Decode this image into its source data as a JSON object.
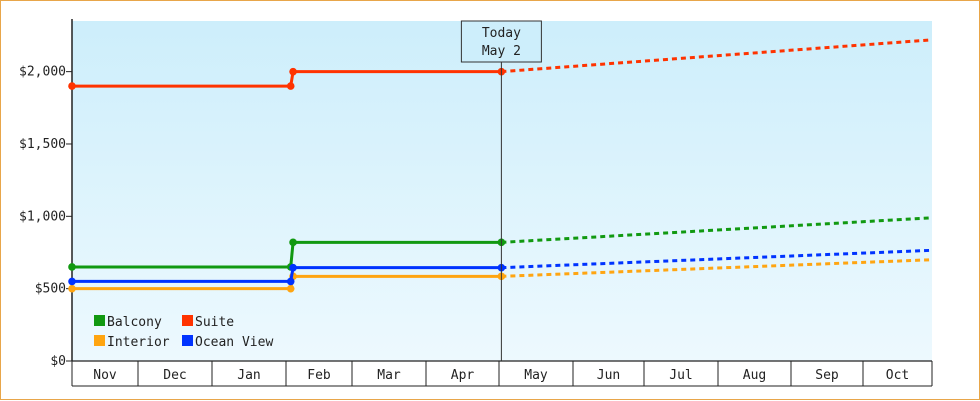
{
  "chart_data": {
    "type": "line",
    "title": "",
    "xlabel": "",
    "ylabel": "",
    "categories": [
      "Nov",
      "Dec",
      "Jan",
      "Feb",
      "Mar",
      "Apr",
      "May",
      "Jun",
      "Jul",
      "Aug",
      "Sep",
      "Oct"
    ],
    "ylim": [
      0,
      2350
    ],
    "yticks": [
      0,
      500,
      1000,
      1500,
      2000
    ],
    "ytick_labels": [
      "$0",
      "$500",
      "$1,000",
      "$1,500",
      "$2,000"
    ],
    "today_marker": {
      "line1": "Today",
      "line2": "May 2",
      "x": "May 2"
    },
    "legend_position": "bottom-left",
    "grid": false,
    "series": [
      {
        "name": "Balcony",
        "color": "#119911",
        "history": [
          [
            "Nov 1",
            650
          ],
          [
            "Feb 3",
            650
          ],
          [
            "Feb 4",
            820
          ],
          [
            "May 2",
            820
          ]
        ],
        "forecast": [
          [
            "May 2",
            820
          ],
          [
            "Nov 1",
            990
          ]
        ]
      },
      {
        "name": "Suite",
        "color": "#ff3300",
        "history": [
          [
            "Nov 1",
            1900
          ],
          [
            "Feb 3",
            1900
          ],
          [
            "Feb 4",
            2000
          ],
          [
            "May 2",
            2000
          ]
        ],
        "forecast": [
          [
            "May 2",
            2000
          ],
          [
            "Nov 1",
            2220
          ]
        ]
      },
      {
        "name": "Interior",
        "color": "#ffa511",
        "history": [
          [
            "Nov 1",
            500
          ],
          [
            "Feb 3",
            500
          ],
          [
            "Feb 4",
            585
          ],
          [
            "May 2",
            585
          ]
        ],
        "forecast": [
          [
            "May 2",
            585
          ],
          [
            "Nov 1",
            700
          ]
        ]
      },
      {
        "name": "Ocean View",
        "color": "#0033ff",
        "history": [
          [
            "Nov 1",
            550
          ],
          [
            "Feb 3",
            550
          ],
          [
            "Feb 4",
            645
          ],
          [
            "May 2",
            645
          ]
        ],
        "forecast": [
          [
            "May 2",
            645
          ],
          [
            "Nov 1",
            765
          ]
        ]
      }
    ]
  }
}
